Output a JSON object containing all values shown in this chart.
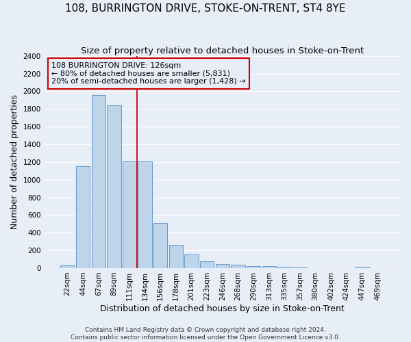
{
  "title": "108, BURRINGTON DRIVE, STOKE-ON-TRENT, ST4 8YE",
  "subtitle": "Size of property relative to detached houses in Stoke-on-Trent",
  "xlabel": "Distribution of detached houses by size in Stoke-on-Trent",
  "ylabel": "Number of detached properties",
  "categories": [
    "22sqm",
    "44sqm",
    "67sqm",
    "89sqm",
    "111sqm",
    "134sqm",
    "156sqm",
    "178sqm",
    "201sqm",
    "223sqm",
    "246sqm",
    "268sqm",
    "290sqm",
    "313sqm",
    "335sqm",
    "357sqm",
    "380sqm",
    "402sqm",
    "424sqm",
    "447sqm",
    "469sqm"
  ],
  "values": [
    30,
    1150,
    1960,
    1840,
    1210,
    1210,
    510,
    265,
    155,
    80,
    48,
    42,
    20,
    22,
    12,
    5,
    2,
    0,
    0,
    15,
    0
  ],
  "bar_color": "#bdd4eb",
  "bar_edge_color": "#6699cc",
  "vline_x": 4.5,
  "annotation_text": "108 BURRINGTON DRIVE: 126sqm\n← 80% of detached houses are smaller (5,831)\n20% of semi-detached houses are larger (1,428) →",
  "footer_line1": "Contains HM Land Registry data © Crown copyright and database right 2024.",
  "footer_line2": "Contains public sector information licensed under the Open Government Licence v3.0.",
  "ylim": [
    0,
    2400
  ],
  "yticks": [
    0,
    200,
    400,
    600,
    800,
    1000,
    1200,
    1400,
    1600,
    1800,
    2000,
    2200,
    2400
  ],
  "bg_color": "#e8eef8",
  "grid_color": "#ffffff",
  "title_fontsize": 11,
  "subtitle_fontsize": 9.5,
  "axis_label_fontsize": 9,
  "tick_fontsize": 7.5,
  "annotation_fontsize": 8,
  "footer_fontsize": 6.5
}
